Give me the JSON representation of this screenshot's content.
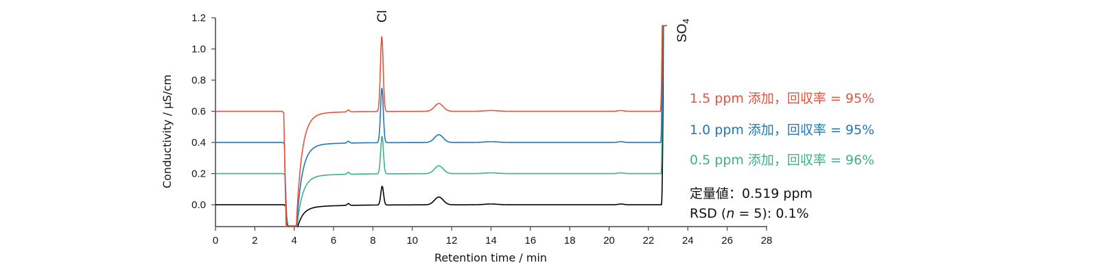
{
  "chart_data": {
    "type": "line",
    "title": "",
    "xlabel": "Retention time  / min",
    "ylabel": "Conductivity / µS/cm",
    "xlim": [
      0,
      28
    ],
    "ylim": [
      -0.14,
      1.2
    ],
    "xticks": [
      "0",
      "2",
      "4",
      "6",
      "8",
      "10",
      "12",
      "14",
      "16",
      "18",
      "20",
      "22",
      "24",
      "26",
      "28"
    ],
    "yticks": [
      "0.0",
      "0.2",
      "0.4",
      "0.6",
      "0.8",
      "1.0",
      "1.2"
    ],
    "grid": false,
    "peak_labels": {
      "cl": {
        "text": "Cl",
        "x": 8.45
      },
      "so4": {
        "main": "SO",
        "sub": "4",
        "x": 22.8
      }
    },
    "series": [
      {
        "name": "1.5 ppm 添加，回収率 = 95%",
        "color": "#e8513a",
        "baseline": 0.6,
        "cl_peak": 1.08,
        "x_shift": 0.0
      },
      {
        "name": "1.0 ppm 添加，回収率 = 95%",
        "color": "#1f77b4",
        "baseline": 0.4,
        "cl_peak": 0.75,
        "x_shift": 0.03
      },
      {
        "name": "0.5 ppm 添加，回収率 = 96%",
        "color": "#3cb08a",
        "baseline": 0.2,
        "cl_peak": 0.44,
        "x_shift": 0.06
      },
      {
        "name": "",
        "color": "#000000",
        "baseline": 0.0,
        "cl_peak": 0.12,
        "x_shift": 0.1
      }
    ],
    "legend": [
      {
        "text": "1.5 ppm 添加，回収率 = 95%",
        "color": "#e8513a"
      },
      {
        "text": "1.0 ppm 添加，回収率 = 95%",
        "color": "#1f77b4"
      },
      {
        "text": "0.5 ppm 添加，回収率 = 96%",
        "color": "#3cb08a"
      }
    ],
    "annotations": {
      "quant_value": "定量値：0.519 ppm",
      "rsd_prefix": "RSD (",
      "rsd_n": "n",
      "rsd_suffix": " = 5): 0.1%"
    }
  }
}
